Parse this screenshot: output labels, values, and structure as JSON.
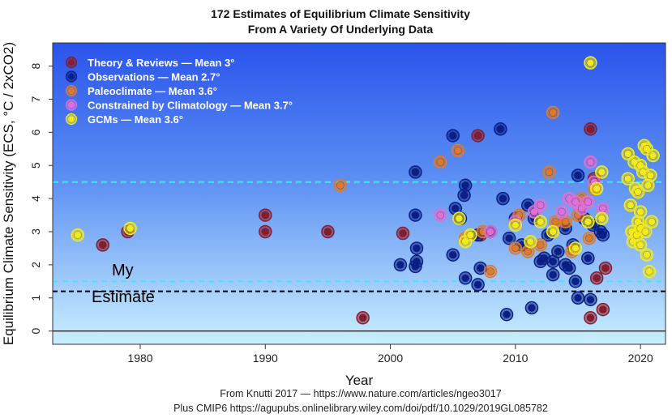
{
  "chart_data": {
    "type": "scatter",
    "title": "172 Estimates of Equilibrium Climate Sensitivity",
    "subtitle": "From A Variety Of Underlying Data",
    "xlabel": "Year",
    "ylabel": "Equilibrium Climate Sensitivity (ECS, °C / 2xCO2)",
    "xlim": [
      1973,
      2022
    ],
    "ylim": [
      -0.4,
      8.7
    ],
    "xticks": [
      "1980",
      "1990",
      "2000",
      "2010",
      "2020"
    ],
    "yticks": [
      "0",
      "1",
      "2",
      "3",
      "4",
      "5",
      "6",
      "7",
      "8"
    ],
    "reference_lines": {
      "zero": 0,
      "likely_range_low": 1.5,
      "likely_range_high": 4.5,
      "my_estimate": 1.2
    },
    "annotation": {
      "line1": "My",
      "line2": "Estimate"
    },
    "credits": {
      "line1": "From Knutti 2017 — https://www.nature.com/articles/ngeo3017",
      "line2": "Plus CMIP6 https://agupubs.onlinelibrary.wiley.com/doi/pdf/10.1029/2019GL085782"
    },
    "series": [
      {
        "name": "Theory & Reviews — Mean 3°",
        "color": "#8b1a2b",
        "points": [
          [
            1977,
            2.6
          ],
          [
            1979,
            3.0
          ],
          [
            1990,
            3.0
          ],
          [
            1990,
            3.5
          ],
          [
            1995,
            3.0
          ],
          [
            1997.8,
            0.4
          ],
          [
            2001,
            2.95
          ],
          [
            2007,
            5.9
          ],
          [
            2007.2,
            2.9
          ],
          [
            2016,
            6.1
          ],
          [
            2016.3,
            4.6
          ],
          [
            2016,
            0.4
          ],
          [
            2016.5,
            1.6
          ],
          [
            2017.2,
            1.9
          ],
          [
            2017,
            0.65
          ]
        ]
      },
      {
        "name": "Observations — Mean 2.7°",
        "color": "#0a1f8a",
        "points": [
          [
            2000.8,
            2.0
          ],
          [
            2002,
            4.8
          ],
          [
            2002,
            3.5
          ],
          [
            2002.1,
            2.5
          ],
          [
            2002.1,
            2.1
          ],
          [
            2002,
            1.95
          ],
          [
            2005,
            2.3
          ],
          [
            2005.2,
            3.7
          ],
          [
            2005,
            5.9
          ],
          [
            2005.6,
            3.4
          ],
          [
            2005.9,
            4.1
          ],
          [
            2006,
            4.4
          ],
          [
            2006,
            1.6
          ],
          [
            2007,
            1.4
          ],
          [
            2007.2,
            1.9
          ],
          [
            2007,
            2.9
          ],
          [
            2008,
            3.0
          ],
          [
            2008.8,
            6.1
          ],
          [
            2009,
            4.0
          ],
          [
            2009.3,
            0.5
          ],
          [
            2009.5,
            2.8
          ],
          [
            2010,
            3.4
          ],
          [
            2010.5,
            2.6
          ],
          [
            2011,
            3.8
          ],
          [
            2011.3,
            0.7
          ],
          [
            2011.5,
            3.4
          ],
          [
            2012,
            2.1
          ],
          [
            2012.3,
            2.2
          ],
          [
            2012.6,
            2.9
          ],
          [
            2013,
            1.7
          ],
          [
            2013,
            2.1
          ],
          [
            2013.4,
            2.4
          ],
          [
            2014,
            3.1
          ],
          [
            2014,
            2.0
          ],
          [
            2014.3,
            1.9
          ],
          [
            2014.6,
            2.6
          ],
          [
            2014.8,
            1.5
          ],
          [
            2015,
            1.0
          ],
          [
            2015,
            4.7
          ],
          [
            2015.5,
            3.4
          ],
          [
            2015.8,
            2.2
          ],
          [
            2016,
            0.95
          ],
          [
            2016.2,
            3.2
          ],
          [
            2016.8,
            3.0
          ],
          [
            2017,
            2.9
          ]
        ]
      },
      {
        "name": "Paleoclimate — Mean 3.6°",
        "color": "#e07a2a",
        "points": [
          [
            1996,
            4.4
          ],
          [
            2004,
            5.1
          ],
          [
            2005.4,
            5.45
          ],
          [
            2006,
            2.8
          ],
          [
            2007.4,
            3.0
          ],
          [
            2008,
            1.8
          ],
          [
            2010,
            2.5
          ],
          [
            2010.3,
            3.5
          ],
          [
            2011,
            2.4
          ],
          [
            2012,
            2.6
          ],
          [
            2012.7,
            4.8
          ],
          [
            2013,
            6.6
          ],
          [
            2013.2,
            3.3
          ],
          [
            2014,
            3.3
          ],
          [
            2014.5,
            2.4
          ],
          [
            2015,
            3.5
          ],
          [
            2015.3,
            4.0
          ],
          [
            2015.9,
            2.8
          ],
          [
            2016.3,
            4.3
          ]
        ]
      },
      {
        "name": "Constrained by Climatology — Mean 3.7°",
        "color": "#e070d8",
        "points": [
          [
            2004,
            3.5
          ],
          [
            2008,
            3.0
          ],
          [
            2010,
            3.3
          ],
          [
            2011.5,
            3.6
          ],
          [
            2012,
            3.8
          ],
          [
            2013.7,
            3.6
          ],
          [
            2014.3,
            4.0
          ],
          [
            2014.8,
            3.9
          ],
          [
            2015.3,
            3.7
          ],
          [
            2015.8,
            3.9
          ],
          [
            2016,
            5.1
          ],
          [
            2016.3,
            4.5
          ],
          [
            2017,
            3.7
          ]
        ]
      },
      {
        "name": "GCMs — Mean 3.6°",
        "color": "#f2ea1a",
        "points": [
          [
            1975,
            2.9
          ],
          [
            1979.2,
            3.1
          ],
          [
            2005.5,
            3.4
          ],
          [
            2006,
            2.7
          ],
          [
            2006.4,
            2.9
          ],
          [
            2010,
            3.2
          ],
          [
            2011.2,
            2.7
          ],
          [
            2012,
            3.3
          ],
          [
            2013,
            3.0
          ],
          [
            2014.8,
            2.5
          ],
          [
            2015.8,
            3.3
          ],
          [
            2016,
            8.1
          ],
          [
            2016.5,
            4.3
          ],
          [
            2016.9,
            3.4
          ],
          [
            2016.9,
            4.8
          ],
          [
            2019,
            4.6
          ],
          [
            2019,
            5.35
          ],
          [
            2019.2,
            3.8
          ],
          [
            2019.3,
            3.0
          ],
          [
            2019.4,
            2.7
          ],
          [
            2019.5,
            5.1
          ],
          [
            2019.6,
            4.3
          ],
          [
            2019.7,
            2.9
          ],
          [
            2019.8,
            4.2
          ],
          [
            2019.8,
            3.3
          ],
          [
            2020,
            5.0
          ],
          [
            2020,
            3.6
          ],
          [
            2020,
            3.1
          ],
          [
            2020,
            2.6
          ],
          [
            2020.2,
            4.8
          ],
          [
            2020.3,
            5.6
          ],
          [
            2020.4,
            3.0
          ],
          [
            2020.5,
            2.3
          ],
          [
            2020.5,
            5.5
          ],
          [
            2020.6,
            4.4
          ],
          [
            2020.7,
            1.8
          ],
          [
            2020.8,
            4.7
          ],
          [
            2020.9,
            3.3
          ],
          [
            2021,
            5.3
          ]
        ]
      }
    ]
  }
}
